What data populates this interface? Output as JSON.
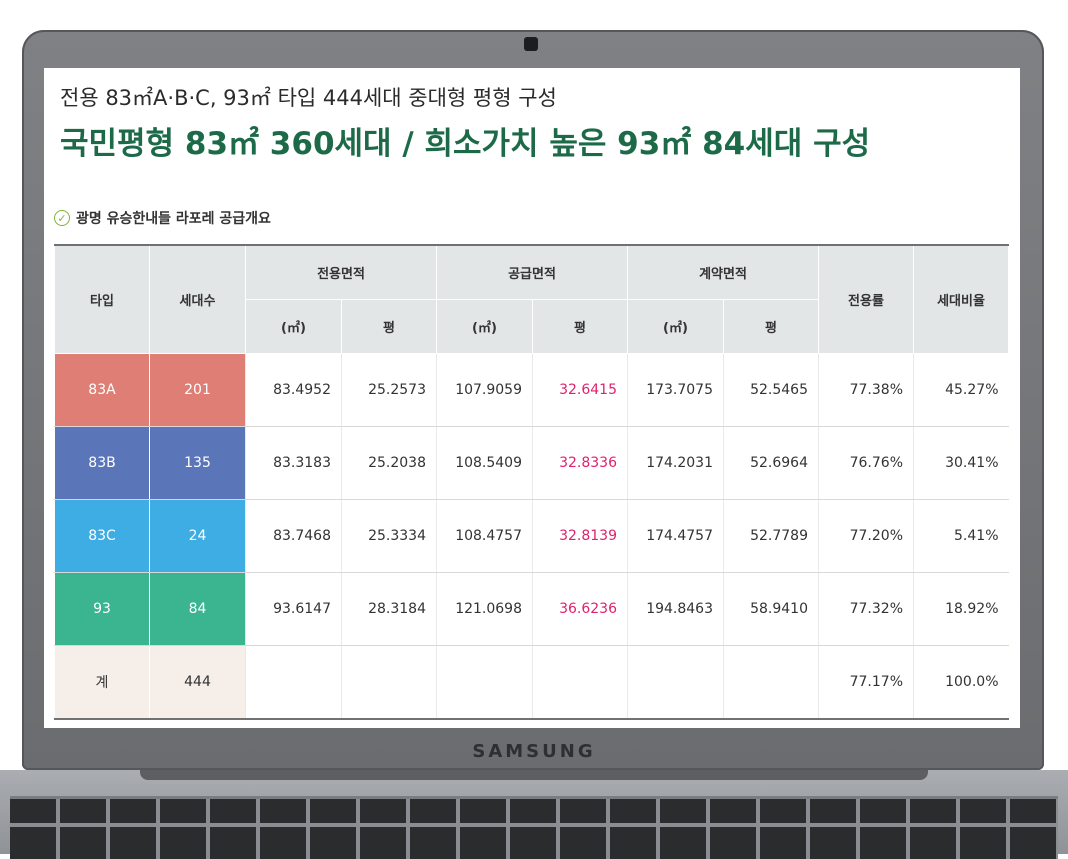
{
  "subtitle": "전용 83㎡A·B·C, 93㎡ 타입 444세대 중대형 평형 구성",
  "headline": "국민평형 83㎡ 360세대 / 희소가치 높은 93㎡ 84세대 구성",
  "section_label": "광명 유승한내들 라포레 공급개요",
  "brand": "SAMSUNG",
  "table": {
    "headers": {
      "type": "타입",
      "households": "세대수",
      "exclusive_area": "전용면적",
      "supply_area": "공급면적",
      "contract_area": "계약면적",
      "exclusive_ratio": "전용률",
      "household_ratio": "세대비율",
      "sqm": "(㎡)",
      "pyeong": "평"
    },
    "rows": [
      {
        "type": "83A",
        "households": "201",
        "ex_sqm": "83.4952",
        "ex_py": "25.2573",
        "sup_sqm": "107.9059",
        "sup_py": "32.6415",
        "con_sqm": "173.7075",
        "con_py": "52.5465",
        "ex_ratio": "77.38%",
        "hh_ratio": "45.27%"
      },
      {
        "type": "83B",
        "households": "135",
        "ex_sqm": "83.3183",
        "ex_py": "25.2038",
        "sup_sqm": "108.5409",
        "sup_py": "32.8336",
        "con_sqm": "174.2031",
        "con_py": "52.6964",
        "ex_ratio": "76.76%",
        "hh_ratio": "30.41%"
      },
      {
        "type": "83C",
        "households": "24",
        "ex_sqm": "83.7468",
        "ex_py": "25.3334",
        "sup_sqm": "108.4757",
        "sup_py": "32.8139",
        "con_sqm": "174.4757",
        "con_py": "52.7789",
        "ex_ratio": "77.20%",
        "hh_ratio": "5.41%"
      },
      {
        "type": "93",
        "households": "84",
        "ex_sqm": "93.6147",
        "ex_py": "28.3184",
        "sup_sqm": "121.0698",
        "sup_py": "36.6236",
        "con_sqm": "194.8463",
        "con_py": "58.9410",
        "ex_ratio": "77.32%",
        "hh_ratio": "18.92%"
      }
    ],
    "total": {
      "type": "계",
      "households": "444",
      "ex_ratio": "77.17%",
      "hh_ratio": "100.0%"
    }
  }
}
